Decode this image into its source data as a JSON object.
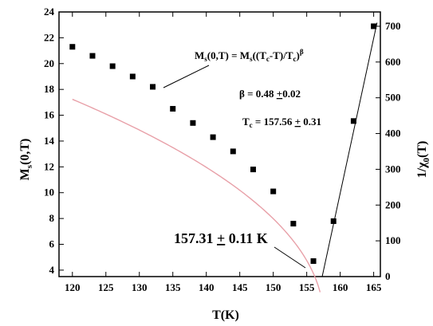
{
  "chart_data": {
    "type": "scatter",
    "xlabel": "T(K)",
    "ylabel_left": "M_s(0,T)",
    "ylabel_right": "1/χ₀(T)",
    "xlim": [
      118,
      166
    ],
    "ylim_left": [
      3.5,
      24
    ],
    "ylim_right": [
      0,
      740
    ],
    "x_ticks": [
      120,
      125,
      130,
      135,
      140,
      145,
      150,
      155,
      160,
      165
    ],
    "y_left_ticks": [
      4,
      6,
      8,
      10,
      12,
      14,
      16,
      18,
      20,
      22,
      24
    ],
    "y_right_ticks": [
      0,
      100,
      200,
      300,
      400,
      500,
      600,
      700
    ],
    "series": [
      {
        "axis": "left",
        "marker": "square",
        "x": [
          120,
          123,
          126,
          129,
          132,
          135,
          138,
          141,
          144,
          147,
          150,
          153,
          156
        ],
        "y": [
          21.3,
          20.6,
          19.8,
          19.0,
          18.2,
          16.5,
          15.4,
          14.3,
          13.2,
          11.8,
          10.1,
          7.6,
          4.7
        ]
      },
      {
        "axis": "right",
        "marker": "square",
        "x": [
          159,
          162,
          165
        ],
        "y": [
          155,
          435,
          700
        ]
      }
    ],
    "fit_left": {
      "color": "#e8a0a8",
      "beta": 0.48,
      "Tc": 157.56,
      "M0": 34.3,
      "x_start": 120,
      "x_end": 157.0
    },
    "fit_right": {
      "color": "#000000",
      "x": [
        157.31,
        165.5
      ],
      "y": [
        0,
        710
      ]
    },
    "annotations": {
      "formula": "M_s(0,T) = M_s((T_c-T)/T_c)^β",
      "beta": "β = 0.48 ±0.02",
      "tc": "T_c = 157.56 ± 0.31",
      "intercept": "157.31 ± 0.11 K"
    }
  }
}
